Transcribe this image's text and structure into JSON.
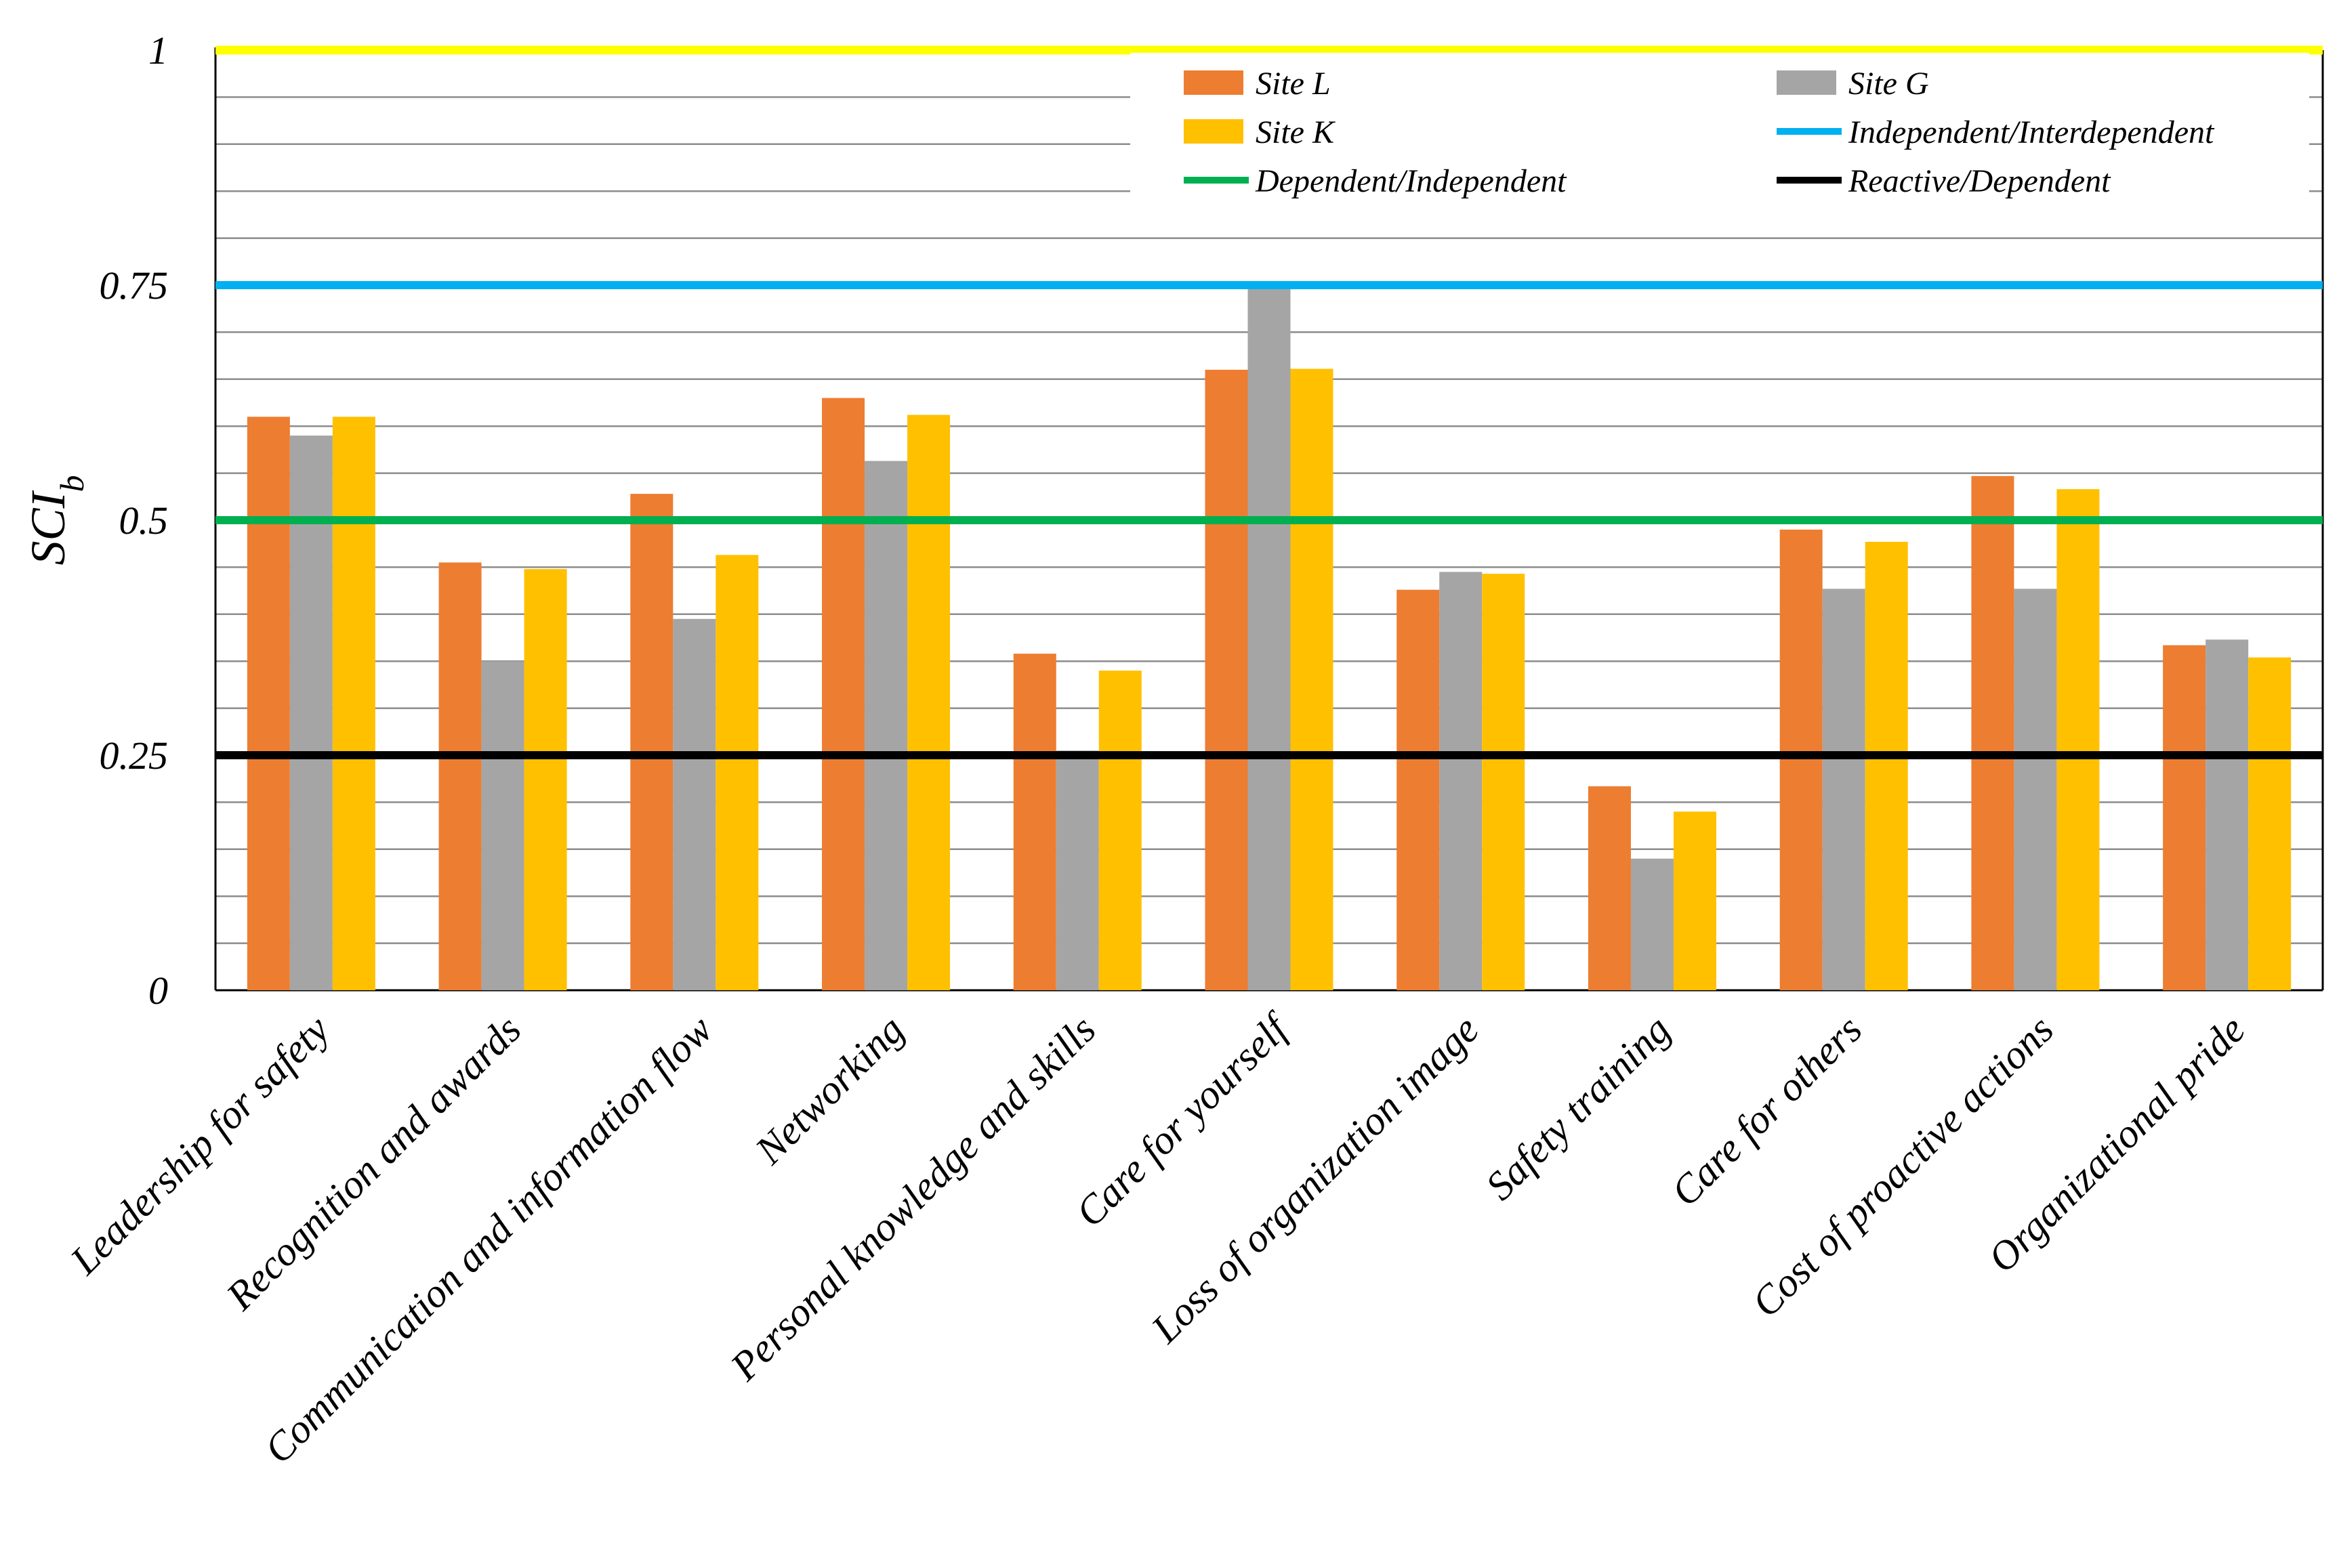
{
  "chart_data": {
    "type": "bar",
    "title": "",
    "xlabel": "",
    "ylabel": "SCI",
    "ylabel_subscript": "b",
    "ylim": [
      0,
      1
    ],
    "yticks": [
      "0",
      "0.25",
      "0.5",
      "0.75",
      "1"
    ],
    "grid": true,
    "legend_position": "top-right",
    "categories": [
      "Leadership for safety",
      "Recognition and awards",
      "Communication and information flow",
      "Networking",
      "Personal knowledge and skills",
      "Care for yourself",
      "Loss of organization image",
      "Safety training",
      "Care for others",
      "Cost of proactive actions",
      "Organizational pride"
    ],
    "series": [
      {
        "name": "Site L",
        "color": "#ED7D31",
        "values": [
          0.61,
          0.455,
          0.528,
          0.63,
          0.358,
          0.66,
          0.426,
          0.217,
          0.49,
          0.547,
          0.367
        ]
      },
      {
        "name": "Site G",
        "color": "#A5A5A5",
        "values": [
          0.59,
          0.35,
          0.395,
          0.563,
          0.255,
          0.75,
          0.445,
          0.14,
          0.427,
          0.427,
          0.373
        ]
      },
      {
        "name": "Site K",
        "color": "#FFC000",
        "values": [
          0.61,
          0.448,
          0.463,
          0.612,
          0.34,
          0.661,
          0.443,
          0.19,
          0.477,
          0.533,
          0.354
        ]
      }
    ],
    "reference_lines": [
      {
        "name": "Independent/Interdependent",
        "value": 0.75,
        "color": "#00B0F0"
      },
      {
        "name": "Dependent/Independent",
        "value": 0.5,
        "color": "#00B050"
      },
      {
        "name": "Reactive/Dependent",
        "value": 0.25,
        "color": "#000000"
      }
    ],
    "top_line": {
      "value": 1,
      "color": "#FFFF00"
    },
    "legend_order": [
      [
        "Site L",
        "Site G"
      ],
      [
        "Site K",
        "Independent/Interdependent"
      ],
      [
        "Dependent/Independent",
        "Reactive/Dependent"
      ]
    ]
  }
}
